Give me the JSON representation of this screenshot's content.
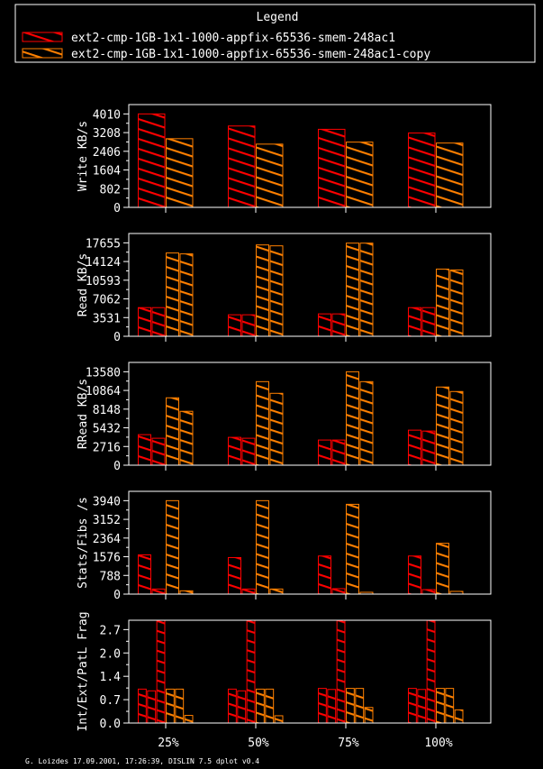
{
  "chart_data": {
    "type": "bar",
    "legend": {
      "title": "Legend",
      "placement": "top",
      "entries": [
        {
          "name": "ext2-cmp-1GB-1x1-1000-appfix-65536-smem-248ac1",
          "color": "#ff0000"
        },
        {
          "name": "ext2-cmp-1GB-1x1-1000-appfix-65536-smem-248ac1-copy",
          "color": "#ff8000"
        }
      ]
    },
    "categories": [
      "25%",
      "50%",
      "75%",
      "100%"
    ],
    "panels": [
      {
        "ylabel": "Write KB/s",
        "tick_values": [
          0,
          802,
          1604,
          2406,
          3208,
          4010
        ],
        "tick_labels": [
          "0",
          "802",
          "1604",
          "2406",
          "3208",
          "4010"
        ],
        "ylim": [
          0,
          4411
        ],
        "bar_colors": [
          "#ff0000",
          "#ff8000"
        ],
        "values": [
          [
            4010,
            2947
          ],
          [
            3492,
            2714
          ],
          [
            3350,
            2800
          ],
          [
            3190,
            2760
          ]
        ]
      },
      {
        "ylabel": "Read KB/s",
        "tick_values": [
          0,
          3531,
          7062,
          10593,
          14124,
          17655
        ],
        "tick_labels": [
          "0",
          "3531",
          "7062",
          "10593",
          "14124",
          "17655"
        ],
        "ylim": [
          0,
          19420
        ],
        "bar_colors": [
          "#ff0000",
          "#ff0000",
          "#ff8000",
          "#ff8000"
        ],
        "values": [
          [
            5415,
            5415,
            15737,
            15568
          ],
          [
            4061,
            4061,
            17260,
            17091
          ],
          [
            4230,
            4230,
            17598,
            17598
          ],
          [
            5415,
            5415,
            12691,
            12522
          ]
        ]
      },
      {
        "ylabel": "RRead KB/s",
        "tick_values": [
          0,
          2716,
          5432,
          8148,
          10864,
          13580
        ],
        "tick_labels": [
          "0",
          "2716",
          "5432",
          "8148",
          "10864",
          "13580"
        ],
        "ylim": [
          0,
          14938
        ],
        "bar_colors": [
          "#ff0000",
          "#ff0000",
          "#ff8000",
          "#ff8000"
        ],
        "values": [
          [
            4440,
            3917,
            9793,
            7834
          ],
          [
            4048,
            3917,
            12144,
            10446
          ],
          [
            3656,
            3656,
            13580,
            12144
          ],
          [
            5092,
            4962,
            11361,
            10708
          ]
        ]
      },
      {
        "ylabel": "Stats/Fibs /s",
        "tick_values": [
          0,
          788,
          1576,
          2364,
          3152,
          3940
        ],
        "tick_labels": [
          "0",
          "788",
          "1576",
          "2364",
          "3152",
          "3940"
        ],
        "ylim": [
          0,
          4334
        ],
        "bar_colors": [
          "#ff0000",
          "#ff0000",
          "#ff8000",
          "#ff8000"
        ],
        "values": [
          [
            1654,
            215,
            3940,
            139
          ],
          [
            1541,
            215,
            3940,
            215
          ],
          [
            1607,
            230,
            3787,
            77
          ],
          [
            1607,
            190,
            2142,
            115
          ]
        ]
      },
      {
        "ylabel": "Int/Ext/PatL Frag",
        "tick_values": [
          0,
          0.675,
          1.35,
          2.025,
          2.7
        ],
        "tick_labels": [
          "0.0",
          "0.7",
          "1.4",
          "2.0",
          "2.7"
        ],
        "ylim": [
          0,
          2.97
        ],
        "bar_colors": [
          "#ff0000",
          "#ff0000",
          "#ff0000",
          "#ff8000",
          "#ff8000",
          "#ff8000"
        ],
        "values": [
          [
            0.98,
            0.93,
            2.97,
            0.98,
            0.98,
            0.22
          ],
          [
            0.98,
            0.93,
            2.97,
            0.98,
            0.98,
            0.21
          ],
          [
            1.0,
            0.97,
            2.97,
            1.0,
            1.0,
            0.45
          ],
          [
            1.0,
            0.97,
            2.97,
            1.0,
            1.0,
            0.38
          ]
        ]
      }
    ],
    "footer": "G. Loizdes 17.09.2001, 17:26:39, DISLIN 7.5 dplot v0.4"
  }
}
